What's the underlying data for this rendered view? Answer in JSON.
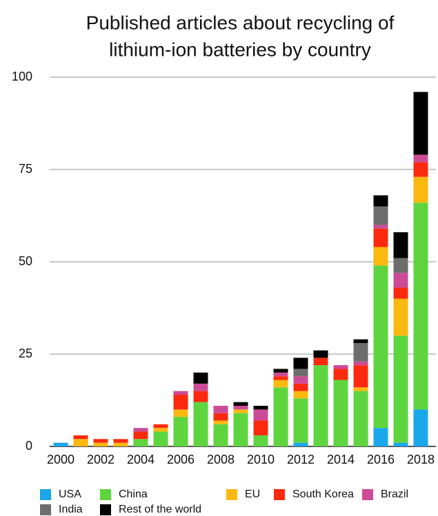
{
  "chart_data": {
    "type": "stacked_bar",
    "title": [
      "Published articles about recycling of",
      "lithium-ion batteries by country"
    ],
    "categories": [
      "2000",
      null,
      "2002",
      null,
      "2004",
      null,
      "2006",
      null,
      "2008",
      null,
      "2010",
      null,
      "2012",
      null,
      "2014",
      null,
      "2016",
      null,
      "2018"
    ],
    "series": [
      {
        "name": "USA",
        "color": "#1aa7ec",
        "values": [
          1,
          0,
          0,
          0,
          0,
          0,
          0,
          0,
          0,
          0,
          0,
          0,
          1,
          0,
          0,
          0,
          5,
          1,
          10
        ]
      },
      {
        "name": "China",
        "color": "#5ed53f",
        "values": [
          0,
          0,
          0,
          0,
          2,
          4,
          8,
          12,
          6,
          9,
          3,
          16,
          12,
          22,
          18,
          15,
          44,
          29,
          56
        ]
      },
      {
        "name": "EU",
        "color": "#fbb80f",
        "values": [
          0,
          2,
          1,
          1,
          0,
          1,
          2,
          0,
          1,
          1,
          0,
          2,
          2,
          0,
          0,
          1,
          5,
          10,
          7
        ]
      },
      {
        "name": "South Korea",
        "color": "#fb2a0f",
        "values": [
          0,
          1,
          1,
          1,
          2,
          1,
          4,
          3,
          2,
          0,
          4,
          1,
          2,
          2,
          3,
          6,
          5,
          3,
          4
        ]
      },
      {
        "name": "Brazil",
        "color": "#cd4b96",
        "values": [
          0,
          0,
          0,
          0,
          1,
          0,
          1,
          2,
          2,
          1,
          3,
          1,
          2,
          0,
          1,
          1,
          1,
          4,
          2
        ]
      },
      {
        "name": "India",
        "color": "#6d6d6d",
        "values": [
          0,
          0,
          0,
          0,
          0,
          0,
          0,
          0,
          0,
          0,
          0,
          0,
          2,
          0,
          0,
          5,
          5,
          4,
          0
        ]
      },
      {
        "name": "Rest of the world",
        "color": "#000000",
        "values": [
          0,
          0,
          0,
          0,
          0,
          0,
          0,
          3,
          0,
          1,
          1,
          1,
          3,
          2,
          0,
          1,
          3,
          7,
          17
        ]
      }
    ],
    "ylim": [
      0,
      100
    ],
    "yticks": [
      0,
      25,
      50,
      75,
      100
    ],
    "grid": true
  }
}
